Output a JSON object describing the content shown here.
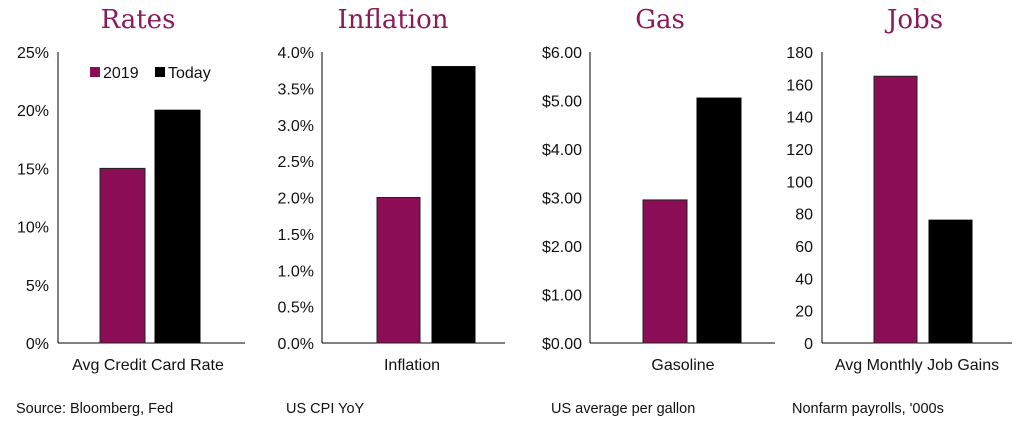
{
  "colors": {
    "y2019": "#8b0d55",
    "today": "#000000",
    "title": "#8b1a5b",
    "text": "#111111"
  },
  "chart_data": [
    {
      "type": "bar",
      "title": "Rates",
      "categories": [
        "Avg Credit Card Rate"
      ],
      "series": [
        {
          "name": "2019",
          "values": [
            15
          ]
        },
        {
          "name": "Today",
          "values": [
            20
          ]
        }
      ],
      "ylim": [
        0,
        25
      ],
      "yticks": [
        "0%",
        "5%",
        "10%",
        "15%",
        "20%",
        "25%"
      ],
      "source": "Source: Bloomberg, Fed",
      "legend": "top-center"
    },
    {
      "type": "bar",
      "title": "Inflation",
      "categories": [
        "Inflation"
      ],
      "series": [
        {
          "name": "2019",
          "values": [
            2.0
          ]
        },
        {
          "name": "Today",
          "values": [
            3.8
          ]
        }
      ],
      "ylim": [
        0,
        4
      ],
      "yticks": [
        "0.0%",
        "0.5%",
        "1.0%",
        "1.5%",
        "2.0%",
        "2.5%",
        "3.0%",
        "3.5%",
        "4.0%"
      ],
      "source": "US CPI YoY"
    },
    {
      "type": "bar",
      "title": "Gas",
      "categories": [
        "Gasoline"
      ],
      "series": [
        {
          "name": "2019",
          "values": [
            2.95
          ]
        },
        {
          "name": "Today",
          "values": [
            5.05
          ]
        }
      ],
      "ylim": [
        0,
        6
      ],
      "yticks": [
        "$0.00",
        "$1.00",
        "$2.00",
        "$3.00",
        "$4.00",
        "$5.00",
        "$6.00"
      ],
      "source": "US average per gallon"
    },
    {
      "type": "bar",
      "title": "Jobs",
      "categories": [
        "Avg Monthly Job Gains"
      ],
      "series": [
        {
          "name": "2019",
          "values": [
            165
          ]
        },
        {
          "name": "Today",
          "values": [
            76
          ]
        }
      ],
      "ylim": [
        0,
        180
      ],
      "yticks": [
        "0",
        "20",
        "40",
        "60",
        "80",
        "100",
        "120",
        "140",
        "160",
        "180"
      ],
      "source": "Nonfarm payrolls, '000s"
    }
  ]
}
